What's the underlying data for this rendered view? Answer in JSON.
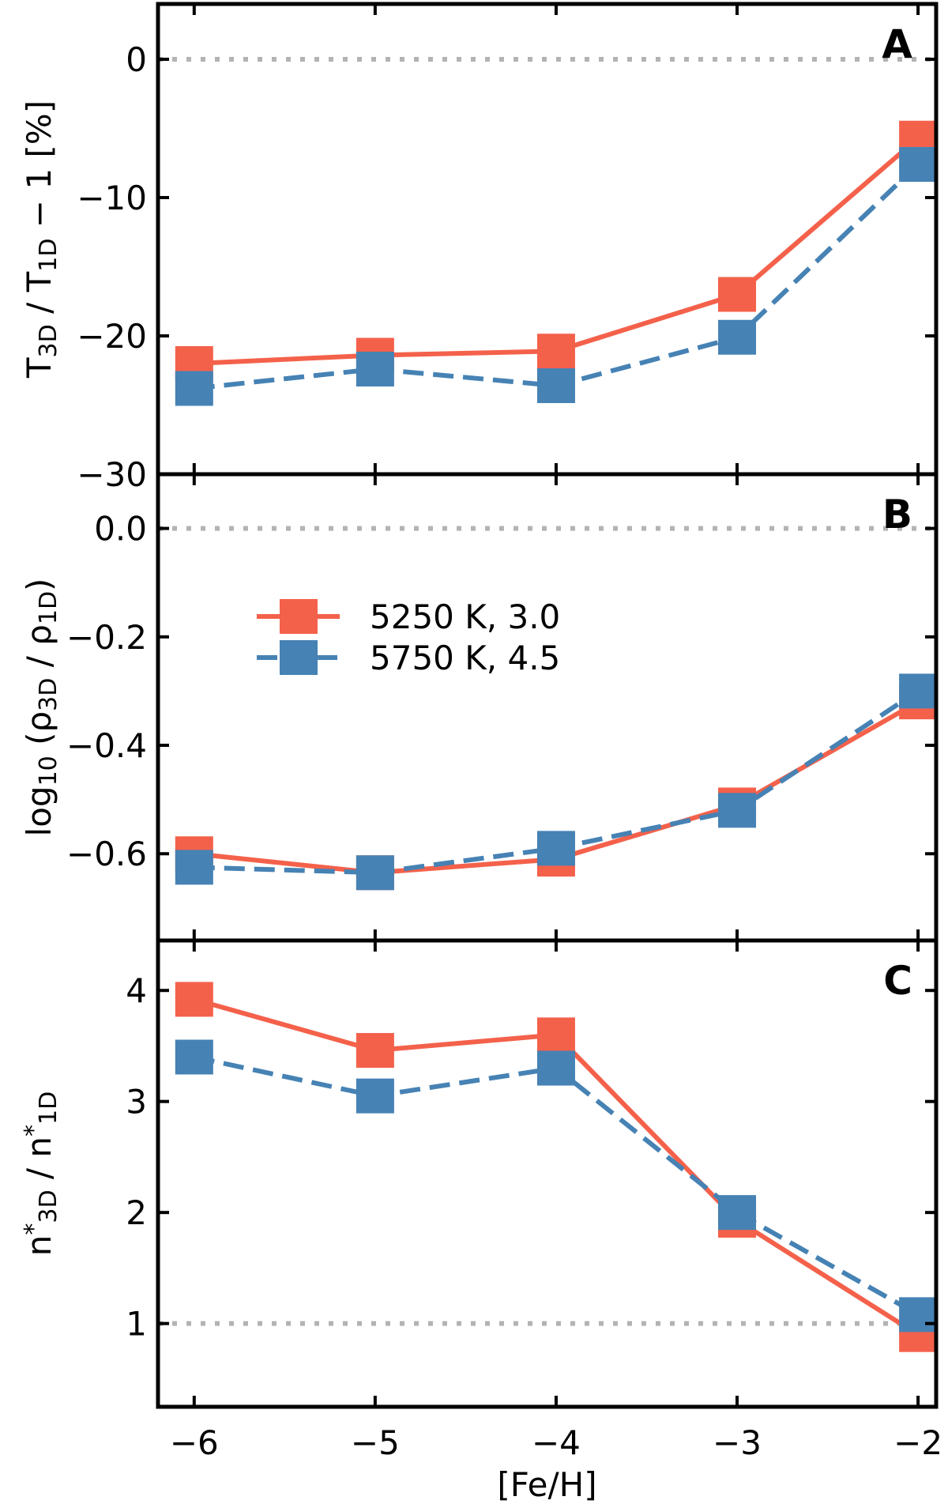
{
  "chart_data": [
    {
      "type": "line",
      "panel_label": "A",
      "ylabel": {
        "pre": "T",
        "sub1": "3D",
        "mid": " / T",
        "sub2": "1D",
        "post": " − 1 [%]"
      },
      "ylim": [
        -30,
        4
      ],
      "yticks": [
        0,
        -10,
        -20,
        -30
      ],
      "ytick_labels": [
        "0",
        "−10",
        "−20",
        "−30"
      ],
      "reference_line": 0,
      "x": [
        -6,
        -5,
        -4,
        -3,
        -2
      ],
      "series": [
        {
          "name": "5250 K, 3.0",
          "values": [
            -22.0,
            -21.4,
            -21.1,
            -17.0,
            -5.7
          ]
        },
        {
          "name": "5750 K, 4.5",
          "values": [
            -23.8,
            -22.4,
            -23.6,
            -20.1,
            -7.6
          ]
        }
      ]
    },
    {
      "type": "line",
      "panel_label": "B",
      "ylabel": {
        "pre": "log",
        "sub1": "10",
        "mid": " (ρ",
        "sub2": "3D",
        "mid2": " / ρ",
        "sub3": "1D",
        "post": ")"
      },
      "ylim": [
        -0.76,
        0.1
      ],
      "yticks": [
        0.0,
        -0.2,
        -0.4,
        -0.6
      ],
      "ytick_labels": [
        "0.0",
        "−0.2",
        "−0.4",
        "−0.6"
      ],
      "reference_line": 0.0,
      "x": [
        -6,
        -5,
        -4,
        -3,
        -2
      ],
      "series": [
        {
          "name": "5250 K, 3.0",
          "values": [
            -0.6,
            -0.635,
            -0.61,
            -0.51,
            -0.32
          ]
        },
        {
          "name": "5750 K, 4.5",
          "values": [
            -0.625,
            -0.635,
            -0.59,
            -0.52,
            -0.3
          ]
        }
      ],
      "legend": {
        "placement": "upper-left",
        "entries": [
          "5250 K, 3.0",
          "5750 K, 4.5"
        ]
      }
    },
    {
      "type": "line",
      "panel_label": "C",
      "ylabel": {
        "pre": "n",
        "sup1": "*",
        "sub1": "3D",
        "mid": " / n",
        "sup2": "*",
        "sub2": "1D"
      },
      "ylim": [
        0.25,
        4.45
      ],
      "yticks": [
        1,
        2,
        3,
        4
      ],
      "ytick_labels": [
        "1",
        "2",
        "3",
        "4"
      ],
      "reference_line": 1.0,
      "x": [
        -6,
        -5,
        -4,
        -3,
        -2
      ],
      "series": [
        {
          "name": "5250 K, 3.0",
          "values": [
            3.92,
            3.46,
            3.6,
            1.93,
            0.9
          ]
        },
        {
          "name": "5750 K, 4.5",
          "values": [
            3.4,
            3.05,
            3.3,
            2.0,
            1.08
          ]
        }
      ]
    }
  ],
  "xaxis": {
    "label": "[Fe/H]",
    "xlim": [
      -6.2,
      -1.9
    ],
    "ticks": [
      -6,
      -5,
      -4,
      -3,
      -2
    ],
    "tick_labels": [
      "−6",
      "−5",
      "−4",
      "−3",
      "−2"
    ]
  },
  "series_styles": [
    {
      "name": "5250 K, 3.0",
      "color": "#f4614b",
      "dash": "solid"
    },
    {
      "name": "5750 K, 4.5",
      "color": "#4682b4",
      "dash": "dashed"
    }
  ],
  "reference_line_color": "#b3b3b3"
}
